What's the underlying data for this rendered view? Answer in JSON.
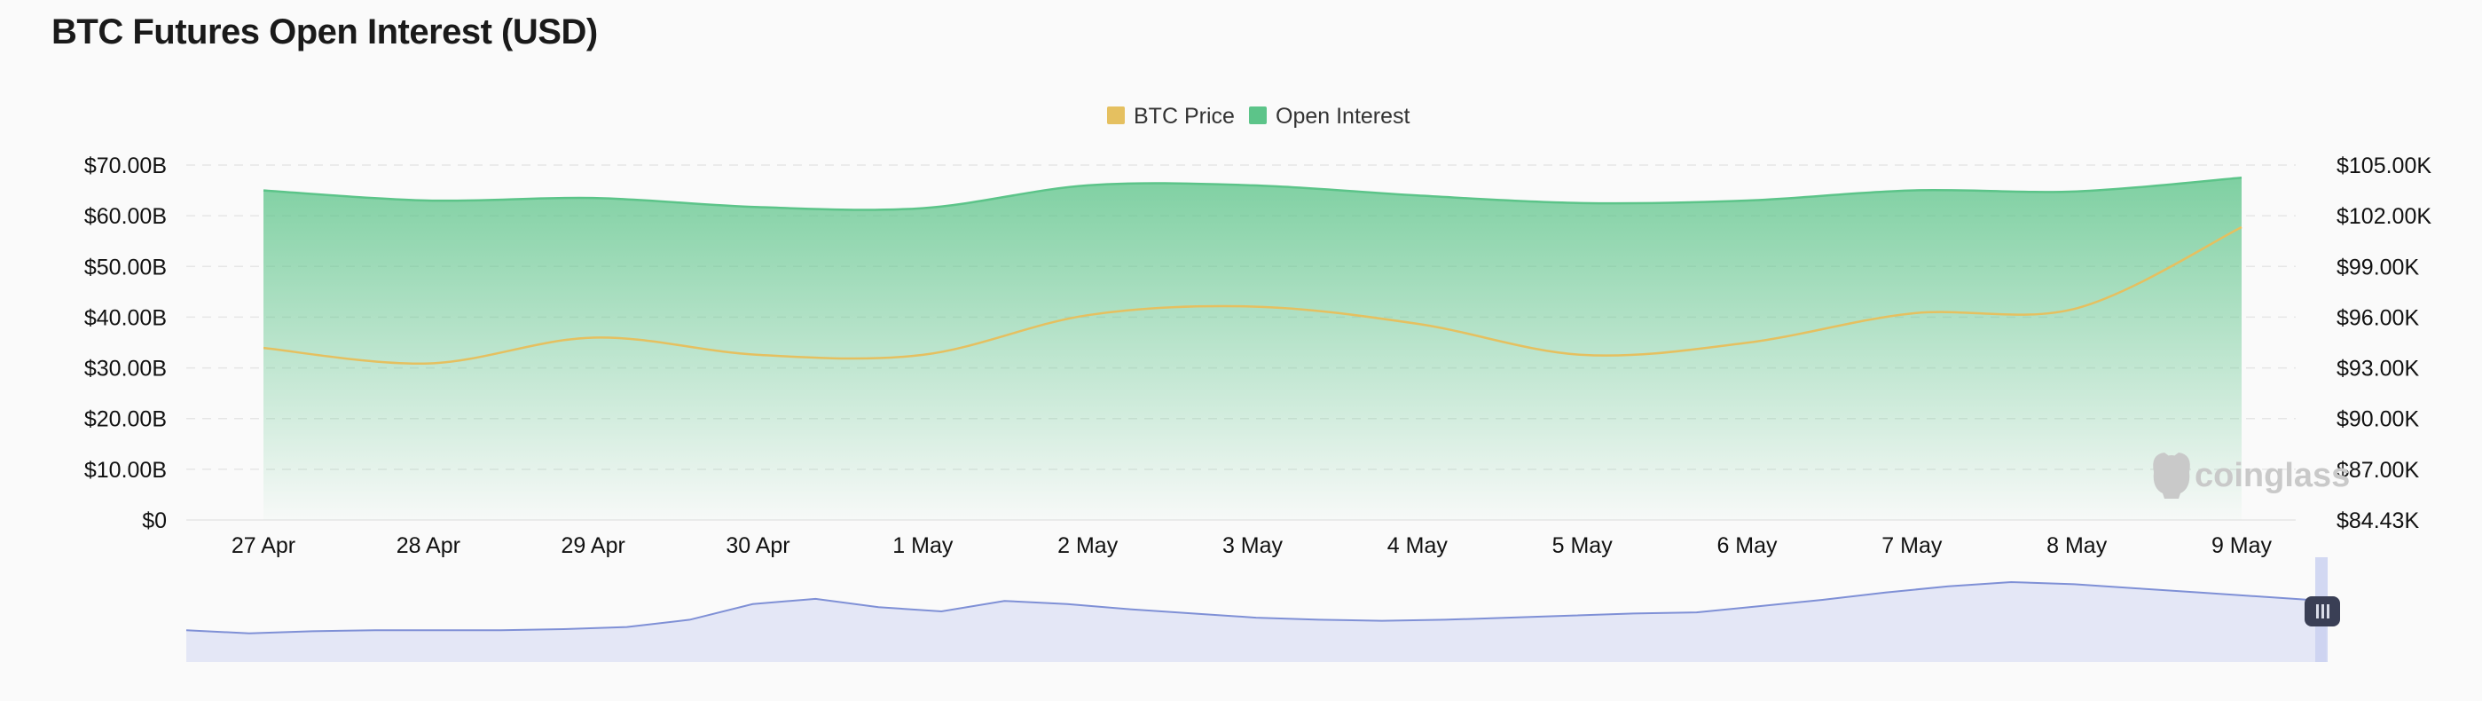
{
  "header": {
    "title": "BTC Futures Open Interest (USD)"
  },
  "watermark": {
    "text": "coinglass"
  },
  "colors": {
    "btc_price": "#e5c060",
    "open_interest": "#5cc489",
    "navigator_line": "#7f90d6",
    "navigator_fill": "#e4e7f6"
  },
  "chart_data": {
    "type": "area",
    "title": "BTC Futures Open Interest (USD)",
    "x": [
      "27 Apr",
      "28 Apr",
      "29 Apr",
      "30 Apr",
      "1 May",
      "2 May",
      "3 May",
      "4 May",
      "5 May",
      "6 May",
      "7 May",
      "8 May",
      "9 May"
    ],
    "series": [
      {
        "name": "Open Interest",
        "type": "area",
        "axis": "left",
        "values": [
          65.0,
          63.0,
          63.5,
          61.7,
          61.5,
          66.0,
          66.0,
          64.0,
          62.5,
          63.0,
          65.0,
          64.8,
          67.5
        ]
      },
      {
        "name": "BTC Price",
        "type": "line",
        "axis": "right",
        "values": [
          94400,
          93500,
          95000,
          94000,
          94000,
          96300,
          96800,
          95800,
          94000,
          94700,
          96400,
          96700,
          101400
        ]
      }
    ],
    "y_left": {
      "ticks": [
        "$0",
        "$10.00B",
        "$20.00B",
        "$30.00B",
        "$40.00B",
        "$50.00B",
        "$60.00B",
        "$70.00B"
      ],
      "range": [
        0,
        70
      ]
    },
    "y_right": {
      "ticks": [
        "$84.43K",
        "$87.00K",
        "$90.00K",
        "$93.00K",
        "$96.00K",
        "$99.00K",
        "$102.00K",
        "$105.00K"
      ],
      "range": [
        84430,
        105000
      ]
    },
    "legend": [
      "BTC Price",
      "Open Interest"
    ],
    "legend_position": "top-center",
    "grid": true,
    "navigator": {
      "values": [
        10,
        7,
        9,
        10,
        10,
        10,
        11,
        13,
        20,
        35,
        40,
        32,
        28,
        38,
        35,
        30,
        26,
        22,
        20,
        19,
        20,
        22,
        24,
        26,
        27,
        33,
        39,
        46,
        52,
        56,
        54,
        50,
        46,
        42,
        38
      ]
    }
  }
}
